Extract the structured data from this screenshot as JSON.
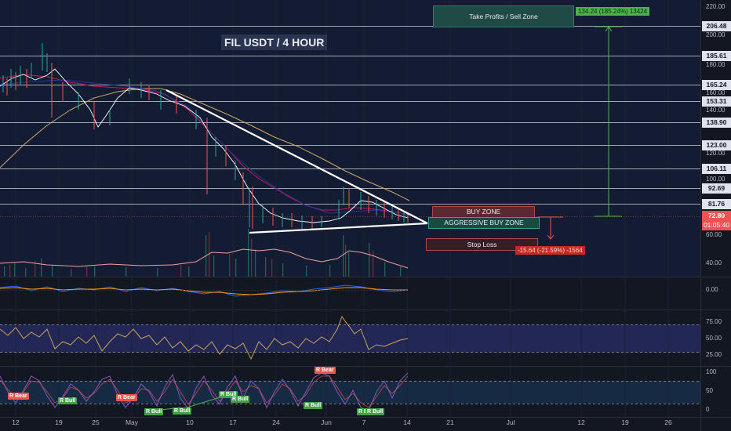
{
  "title": "FIL USDT /  4 HOUR",
  "zones": {
    "take_profits": "Take Profits / Sell Zone",
    "buy_zone": "BUY ZONE",
    "aggressive_buy_zone": "AGGRESSIVE BUY ZONE",
    "stop_loss": "Stop Loss"
  },
  "measures": {
    "up": "134.24 (185.24%) 13424",
    "down": "-15.64 (-21.59%) -1564"
  },
  "price_axis": {
    "ticks": [
      "220.00",
      "200.00",
      "180.00",
      "160.00",
      "140.00",
      "120.00",
      "100.00",
      "60.00",
      "40.00"
    ],
    "level_tags": [
      "206.48",
      "185.61",
      "165.24",
      "153.31",
      "138.90",
      "123.00",
      "106.11",
      "92.69",
      "81.76"
    ],
    "current_price": "72.80",
    "countdown": "01:05:40"
  },
  "macd_axis": {
    "ticks": [
      "0.00"
    ]
  },
  "rsi_axis": {
    "ticks": [
      "75.00",
      "50.00",
      "25.00"
    ]
  },
  "stoch_axis": {
    "ticks": [
      "100",
      "50",
      "0"
    ]
  },
  "date_axis": [
    "12",
    "19",
    "25",
    "May",
    "10",
    "17",
    "24",
    "Jun",
    "7",
    "14",
    "21",
    "Jul",
    "12",
    "19",
    "26"
  ],
  "signals": [
    "R Bear",
    "R Bull",
    "R Bear",
    "R Bull",
    "R Bull",
    "R Bull",
    "R Bull",
    "R Bear",
    "R Bull",
    "R Bull",
    "R Bull"
  ],
  "colors": {
    "background": "#131722",
    "level_line": "#b2b5be",
    "triangle": "#ffffff",
    "buy_zone": "#b2474b",
    "aggressive_zone": "#1e6f5c",
    "take_profit": "#2e7d6a",
    "stop_loss": "#b2474b",
    "rsi_band": "#2a2e5a"
  }
}
